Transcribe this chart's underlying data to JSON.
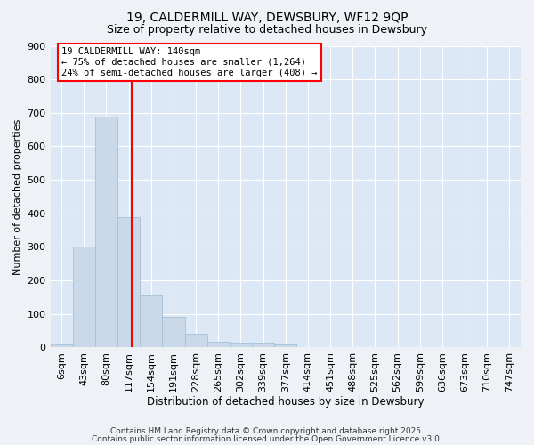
{
  "title1": "19, CALDERMILL WAY, DEWSBURY, WF12 9QP",
  "title2": "Size of property relative to detached houses in Dewsbury",
  "xlabel": "Distribution of detached houses by size in Dewsbury",
  "ylabel": "Number of detached properties",
  "bin_labels": [
    "6sqm",
    "43sqm",
    "80sqm",
    "117sqm",
    "154sqm",
    "191sqm",
    "228sqm",
    "265sqm",
    "302sqm",
    "339sqm",
    "377sqm",
    "414sqm",
    "451sqm",
    "488sqm",
    "525sqm",
    "562sqm",
    "599sqm",
    "636sqm",
    "673sqm",
    "710sqm",
    "747sqm"
  ],
  "values": [
    8,
    300,
    690,
    390,
    155,
    90,
    40,
    18,
    13,
    13,
    10,
    0,
    0,
    0,
    0,
    0,
    0,
    0,
    0,
    0,
    0
  ],
  "bar_color": "#c9d9ea",
  "bar_edge_color": "#a8bfd4",
  "red_line_x": 4,
  "annotation_text": "19 CALDERMILL WAY: 140sqm\n← 75% of detached houses are smaller (1,264)\n24% of semi-detached houses are larger (408) →",
  "ylim": [
    0,
    900
  ],
  "yticks": [
    0,
    100,
    200,
    300,
    400,
    500,
    600,
    700,
    800,
    900
  ],
  "footer1": "Contains HM Land Registry data © Crown copyright and database right 2025.",
  "footer2": "Contains public sector information licensed under the Open Government Licence v3.0.",
  "bg_color": "#eef2f7",
  "plot_bg_color": "#dce8f5",
  "grid_color": "#ffffff",
  "title1_fontsize": 10,
  "title2_fontsize": 9,
  "annotation_fontsize": 7.5,
  "footer_fontsize": 6.5,
  "ylabel_fontsize": 8,
  "xlabel_fontsize": 8.5
}
